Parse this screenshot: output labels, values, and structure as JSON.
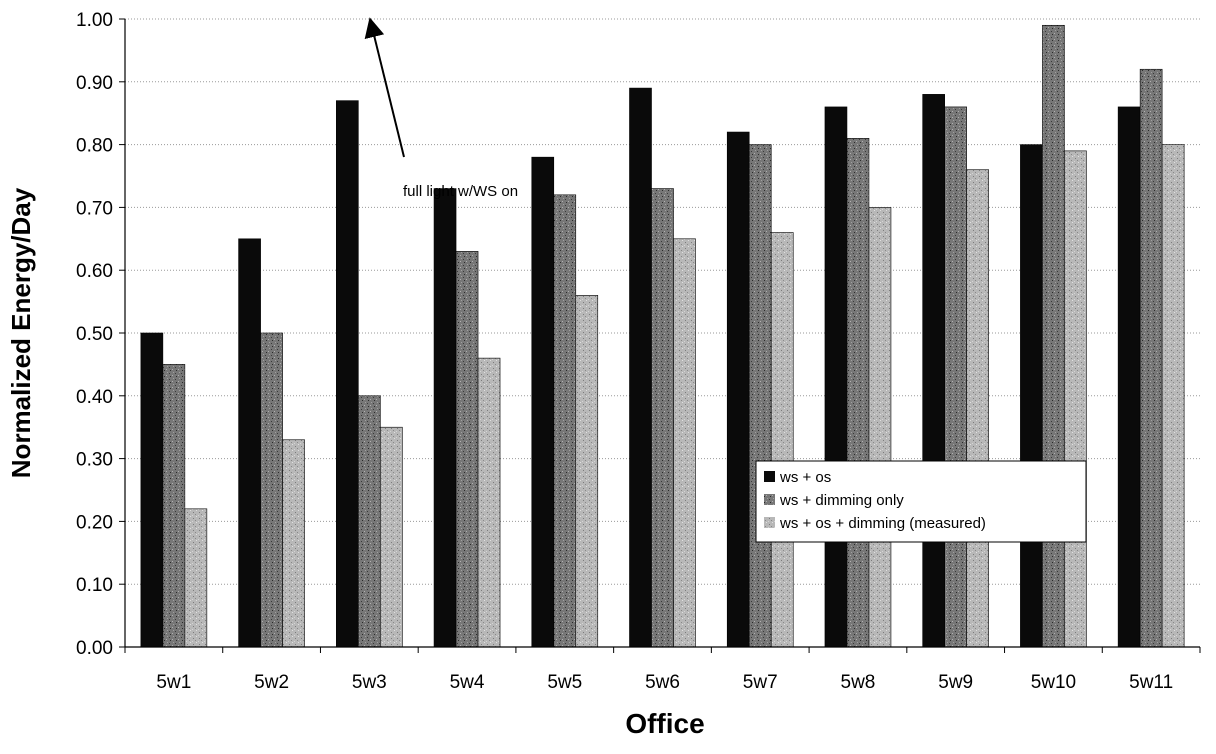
{
  "chart_data": {
    "type": "bar",
    "title": "",
    "xlabel": "Office",
    "ylabel": "Normalized Energy/Day",
    "ylim": [
      0,
      1
    ],
    "ytick_step": 0.1,
    "yticks": [
      "0.00",
      "0.10",
      "0.20",
      "0.30",
      "0.40",
      "0.50",
      "0.60",
      "0.70",
      "0.80",
      "0.90",
      "1.00"
    ],
    "grid": true,
    "legend_position": "lower-right",
    "categories": [
      "5w1",
      "5w2",
      "5w3",
      "5w4",
      "5w5",
      "5w6",
      "5w7",
      "5w8",
      "5w9",
      "5w10",
      "5w11"
    ],
    "series": [
      {
        "name": "ws + os",
        "color": "#0a0a0a",
        "values": [
          0.5,
          0.65,
          0.87,
          0.73,
          0.78,
          0.89,
          0.82,
          0.86,
          0.88,
          0.8,
          0.86
        ]
      },
      {
        "name": "ws + dimming only",
        "color": "#7a7a7a",
        "values": [
          0.45,
          0.5,
          0.4,
          0.63,
          0.72,
          0.73,
          0.8,
          0.81,
          0.86,
          0.99,
          0.92
        ]
      },
      {
        "name": "ws + os + dimming (measured)",
        "color": "#b4b4b4",
        "values": [
          0.22,
          0.33,
          0.35,
          0.46,
          0.56,
          0.65,
          0.66,
          0.7,
          0.76,
          0.79,
          0.8
        ]
      }
    ],
    "annotations": [
      {
        "text": "full light w/WS on",
        "points_to_y": 1.0
      }
    ]
  }
}
